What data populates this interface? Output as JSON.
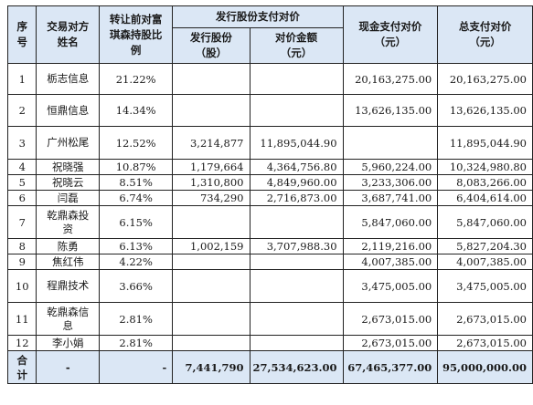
{
  "headers": {
    "seq": "序号",
    "counterparty": "交易对方姓名",
    "ratio": "转让前对富琪森持股比例",
    "share_payment": "发行股份支付对价",
    "shares_issued": "发行股份（股）",
    "share_amount": "对价金额（元）",
    "cash_payment": "现金支付对价（元）",
    "total_payment": "总支付对价（元）"
  },
  "rows": [
    {
      "seq": "1",
      "name": "栃志信息",
      "ratio": "21.22%",
      "shares": "",
      "share_amount": "",
      "cash": "20,163,275.00",
      "total": "20,163,275.00"
    },
    {
      "seq": "2",
      "name": "恒鼎信息",
      "ratio": "14.34%",
      "shares": "",
      "share_amount": "",
      "cash": "13,626,135.00",
      "total": "13,626,135.00"
    },
    {
      "seq": "3",
      "name": "广州松尾",
      "ratio": "12.52%",
      "shares": "3,214,877",
      "share_amount": "11,895,044.90",
      "cash": "",
      "total": "11,895,044.90"
    },
    {
      "seq": "4",
      "name": "祝晓强",
      "ratio": "10.87%",
      "shares": "1,179,664",
      "share_amount": "4,364,756.80",
      "cash": "5,960,224.00",
      "total": "10,324,980.80"
    },
    {
      "seq": "5",
      "name": "祝晓云",
      "ratio": "8.51%",
      "shares": "1,310,800",
      "share_amount": "4,849,960.00",
      "cash": "3,233,306.00",
      "total": "8,083,266.00"
    },
    {
      "seq": "6",
      "name": "闫磊",
      "ratio": "6.74%",
      "shares": "734,290",
      "share_amount": "2,716,873.00",
      "cash": "3,687,741.00",
      "total": "6,404,614.00"
    },
    {
      "seq": "7",
      "name": "乾鼎森投资",
      "ratio": "6.15%",
      "shares": "",
      "share_amount": "",
      "cash": "5,847,060.00",
      "total": "5,847,060.00"
    },
    {
      "seq": "8",
      "name": "陈勇",
      "ratio": "6.13%",
      "shares": "1,002,159",
      "share_amount": "3,707,988.30",
      "cash": "2,119,216.00",
      "total": "5,827,204.30"
    },
    {
      "seq": "9",
      "name": "焦红伟",
      "ratio": "4.22%",
      "shares": "",
      "share_amount": "",
      "cash": "4,007,385.00",
      "total": "4,007,385.00"
    },
    {
      "seq": "10",
      "name": "程鼎技术",
      "ratio": "3.66%",
      "shares": "",
      "share_amount": "",
      "cash": "3,475,005.00",
      "total": "3,475,005.00"
    },
    {
      "seq": "11",
      "name": "乾鼎森信息",
      "ratio": "2.81%",
      "shares": "",
      "share_amount": "",
      "cash": "2,673,015.00",
      "total": "2,673,015.00"
    },
    {
      "seq": "12",
      "name": "李小娟",
      "ratio": "2.81%",
      "shares": "",
      "share_amount": "",
      "cash": "2,673,015.00",
      "total": "2,673,015.00"
    }
  ],
  "total": {
    "label": "合计",
    "name": "-",
    "ratio": "-",
    "shares": "7,441,790",
    "share_amount": "27,534,623.00",
    "cash": "67,465,377.00",
    "total": "95,000,000.00"
  }
}
